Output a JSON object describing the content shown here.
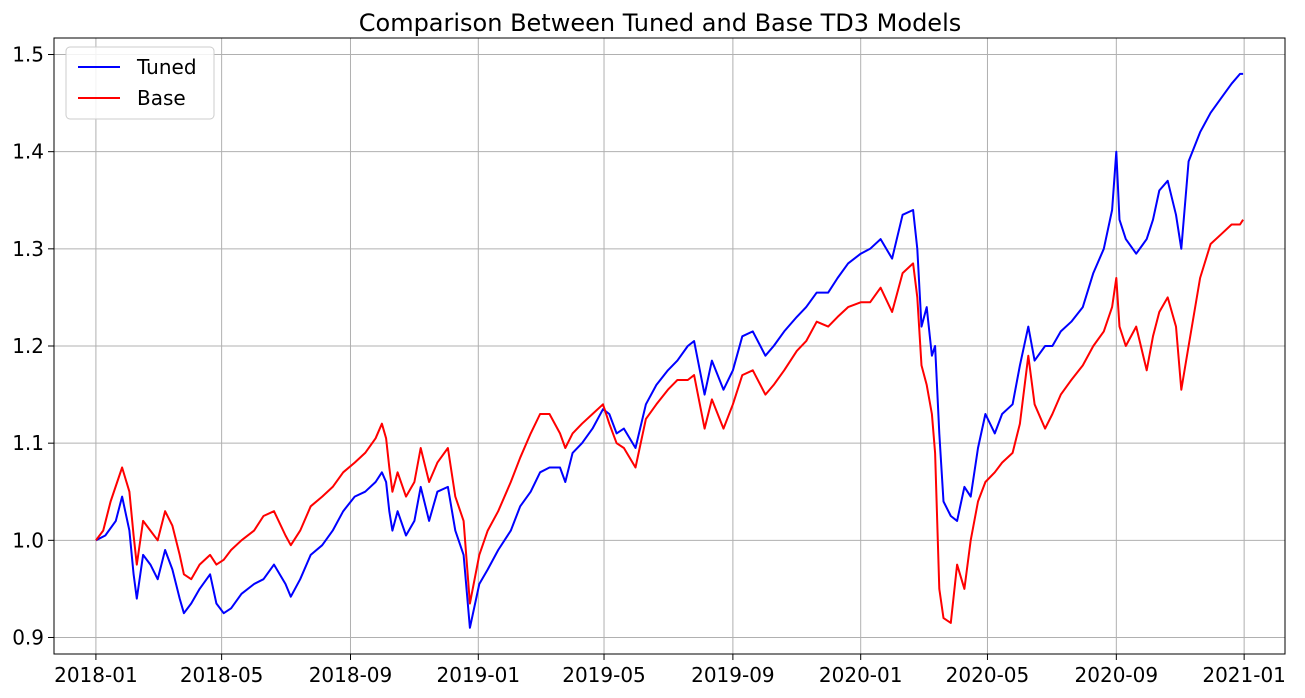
{
  "chart_data": {
    "type": "line",
    "title": "Comparison Between Tuned and Base TD3 Models",
    "xlabel": "",
    "ylabel": "",
    "x_range": [
      "2017-11-22",
      "2021-02-09"
    ],
    "ylim": [
      0.883,
      1.517
    ],
    "grid": true,
    "legend_position": "upper-left",
    "x_ticks": [
      "2018-01",
      "2018-05",
      "2018-09",
      "2019-01",
      "2019-05",
      "2019-09",
      "2020-01",
      "2020-05",
      "2020-09",
      "2021-01"
    ],
    "y_ticks": [
      0.9,
      1.0,
      1.1,
      1.2,
      1.3,
      1.4,
      1.5
    ],
    "y_tick_labels": [
      "0.9",
      "1.0",
      "1.1",
      "1.2",
      "1.3",
      "1.4",
      "1.5"
    ],
    "colors": {
      "tuned": "#0000ff",
      "base": "#ff0000",
      "grid": "#b0b0b0"
    },
    "series": [
      {
        "name": "Tuned",
        "color": "#0000ff",
        "points": [
          [
            "2018-01-01",
            1.0
          ],
          [
            "2018-01-10",
            1.005
          ],
          [
            "2018-01-20",
            1.02
          ],
          [
            "2018-01-26",
            1.045
          ],
          [
            "2018-02-02",
            1.01
          ],
          [
            "2018-02-06",
            0.965
          ],
          [
            "2018-02-09",
            0.94
          ],
          [
            "2018-02-15",
            0.985
          ],
          [
            "2018-02-22",
            0.975
          ],
          [
            "2018-03-01",
            0.96
          ],
          [
            "2018-03-08",
            0.99
          ],
          [
            "2018-03-15",
            0.97
          ],
          [
            "2018-03-22",
            0.94
          ],
          [
            "2018-03-26",
            0.925
          ],
          [
            "2018-04-02",
            0.935
          ],
          [
            "2018-04-10",
            0.95
          ],
          [
            "2018-04-20",
            0.965
          ],
          [
            "2018-04-26",
            0.935
          ],
          [
            "2018-05-03",
            0.925
          ],
          [
            "2018-05-10",
            0.93
          ],
          [
            "2018-05-20",
            0.945
          ],
          [
            "2018-06-01",
            0.955
          ],
          [
            "2018-06-10",
            0.96
          ],
          [
            "2018-06-20",
            0.975
          ],
          [
            "2018-07-01",
            0.955
          ],
          [
            "2018-07-06",
            0.942
          ],
          [
            "2018-07-15",
            0.96
          ],
          [
            "2018-07-25",
            0.985
          ],
          [
            "2018-08-05",
            0.995
          ],
          [
            "2018-08-15",
            1.01
          ],
          [
            "2018-08-25",
            1.03
          ],
          [
            "2018-09-05",
            1.045
          ],
          [
            "2018-09-15",
            1.05
          ],
          [
            "2018-09-25",
            1.06
          ],
          [
            "2018-10-01",
            1.07
          ],
          [
            "2018-10-05",
            1.06
          ],
          [
            "2018-10-08",
            1.03
          ],
          [
            "2018-10-11",
            1.01
          ],
          [
            "2018-10-16",
            1.03
          ],
          [
            "2018-10-24",
            1.005
          ],
          [
            "2018-11-01",
            1.02
          ],
          [
            "2018-11-07",
            1.055
          ],
          [
            "2018-11-15",
            1.02
          ],
          [
            "2018-11-23",
            1.05
          ],
          [
            "2018-12-03",
            1.055
          ],
          [
            "2018-12-10",
            1.01
          ],
          [
            "2018-12-18",
            0.985
          ],
          [
            "2018-12-24",
            0.91
          ],
          [
            "2019-01-02",
            0.955
          ],
          [
            "2019-01-10",
            0.97
          ],
          [
            "2019-01-20",
            0.99
          ],
          [
            "2019-02-01",
            1.01
          ],
          [
            "2019-02-10",
            1.035
          ],
          [
            "2019-02-20",
            1.05
          ],
          [
            "2019-03-01",
            1.07
          ],
          [
            "2019-03-10",
            1.075
          ],
          [
            "2019-03-20",
            1.075
          ],
          [
            "2019-03-25",
            1.06
          ],
          [
            "2019-04-01",
            1.09
          ],
          [
            "2019-04-10",
            1.1
          ],
          [
            "2019-04-20",
            1.115
          ],
          [
            "2019-04-30",
            1.135
          ],
          [
            "2019-05-06",
            1.13
          ],
          [
            "2019-05-13",
            1.11
          ],
          [
            "2019-05-20",
            1.115
          ],
          [
            "2019-05-31",
            1.095
          ],
          [
            "2019-06-10",
            1.14
          ],
          [
            "2019-06-20",
            1.16
          ],
          [
            "2019-07-01",
            1.175
          ],
          [
            "2019-07-10",
            1.185
          ],
          [
            "2019-07-20",
            1.2
          ],
          [
            "2019-07-26",
            1.205
          ],
          [
            "2019-08-05",
            1.15
          ],
          [
            "2019-08-12",
            1.185
          ],
          [
            "2019-08-23",
            1.155
          ],
          [
            "2019-09-01",
            1.175
          ],
          [
            "2019-09-10",
            1.21
          ],
          [
            "2019-09-20",
            1.215
          ],
          [
            "2019-10-02",
            1.19
          ],
          [
            "2019-10-10",
            1.2
          ],
          [
            "2019-10-20",
            1.215
          ],
          [
            "2019-11-01",
            1.23
          ],
          [
            "2019-11-10",
            1.24
          ],
          [
            "2019-11-20",
            1.255
          ],
          [
            "2019-12-01",
            1.255
          ],
          [
            "2019-12-10",
            1.27
          ],
          [
            "2019-12-20",
            1.285
          ],
          [
            "2020-01-01",
            1.295
          ],
          [
            "2020-01-10",
            1.3
          ],
          [
            "2020-01-20",
            1.31
          ],
          [
            "2020-01-31",
            1.29
          ],
          [
            "2020-02-10",
            1.335
          ],
          [
            "2020-02-20",
            1.34
          ],
          [
            "2020-02-24",
            1.3
          ],
          [
            "2020-02-28",
            1.22
          ],
          [
            "2020-03-04",
            1.24
          ],
          [
            "2020-03-09",
            1.19
          ],
          [
            "2020-03-12",
            1.2
          ],
          [
            "2020-03-16",
            1.11
          ],
          [
            "2020-03-20",
            1.04
          ],
          [
            "2020-03-27",
            1.025
          ],
          [
            "2020-04-02",
            1.02
          ],
          [
            "2020-04-09",
            1.055
          ],
          [
            "2020-04-15",
            1.045
          ],
          [
            "2020-04-22",
            1.095
          ],
          [
            "2020-04-29",
            1.13
          ],
          [
            "2020-05-08",
            1.11
          ],
          [
            "2020-05-15",
            1.13
          ],
          [
            "2020-05-25",
            1.14
          ],
          [
            "2020-06-01",
            1.18
          ],
          [
            "2020-06-09",
            1.22
          ],
          [
            "2020-06-15",
            1.185
          ],
          [
            "2020-06-25",
            1.2
          ],
          [
            "2020-07-02",
            1.2
          ],
          [
            "2020-07-10",
            1.215
          ],
          [
            "2020-07-20",
            1.225
          ],
          [
            "2020-07-31",
            1.24
          ],
          [
            "2020-08-10",
            1.275
          ],
          [
            "2020-08-20",
            1.3
          ],
          [
            "2020-08-28",
            1.34
          ],
          [
            "2020-09-01",
            1.4
          ],
          [
            "2020-09-04",
            1.33
          ],
          [
            "2020-09-10",
            1.31
          ],
          [
            "2020-09-20",
            1.295
          ],
          [
            "2020-09-30",
            1.31
          ],
          [
            "2020-10-06",
            1.33
          ],
          [
            "2020-10-12",
            1.36
          ],
          [
            "2020-10-20",
            1.37
          ],
          [
            "2020-10-28",
            1.335
          ],
          [
            "2020-11-02",
            1.3
          ],
          [
            "2020-11-09",
            1.39
          ],
          [
            "2020-11-20",
            1.42
          ],
          [
            "2020-11-30",
            1.44
          ],
          [
            "2020-12-10",
            1.455
          ],
          [
            "2020-12-20",
            1.47
          ],
          [
            "2020-12-28",
            1.48
          ],
          [
            "2020-12-31",
            1.48
          ]
        ]
      },
      {
        "name": "Base",
        "color": "#ff0000",
        "points": [
          [
            "2018-01-01",
            1.0
          ],
          [
            "2018-01-08",
            1.01
          ],
          [
            "2018-01-15",
            1.04
          ],
          [
            "2018-01-26",
            1.075
          ],
          [
            "2018-02-02",
            1.05
          ],
          [
            "2018-02-06",
            1.005
          ],
          [
            "2018-02-09",
            0.975
          ],
          [
            "2018-02-15",
            1.02
          ],
          [
            "2018-02-22",
            1.01
          ],
          [
            "2018-03-01",
            1.0
          ],
          [
            "2018-03-08",
            1.03
          ],
          [
            "2018-03-15",
            1.015
          ],
          [
            "2018-03-22",
            0.985
          ],
          [
            "2018-03-26",
            0.965
          ],
          [
            "2018-04-02",
            0.96
          ],
          [
            "2018-04-10",
            0.975
          ],
          [
            "2018-04-20",
            0.985
          ],
          [
            "2018-04-26",
            0.975
          ],
          [
            "2018-05-03",
            0.98
          ],
          [
            "2018-05-10",
            0.99
          ],
          [
            "2018-05-20",
            1.0
          ],
          [
            "2018-06-01",
            1.01
          ],
          [
            "2018-06-10",
            1.025
          ],
          [
            "2018-06-20",
            1.03
          ],
          [
            "2018-07-01",
            1.005
          ],
          [
            "2018-07-06",
            0.995
          ],
          [
            "2018-07-15",
            1.01
          ],
          [
            "2018-07-25",
            1.035
          ],
          [
            "2018-08-05",
            1.045
          ],
          [
            "2018-08-15",
            1.055
          ],
          [
            "2018-08-25",
            1.07
          ],
          [
            "2018-09-05",
            1.08
          ],
          [
            "2018-09-15",
            1.09
          ],
          [
            "2018-09-25",
            1.105
          ],
          [
            "2018-10-01",
            1.12
          ],
          [
            "2018-10-05",
            1.105
          ],
          [
            "2018-10-08",
            1.075
          ],
          [
            "2018-10-11",
            1.05
          ],
          [
            "2018-10-16",
            1.07
          ],
          [
            "2018-10-24",
            1.045
          ],
          [
            "2018-11-01",
            1.06
          ],
          [
            "2018-11-07",
            1.095
          ],
          [
            "2018-11-15",
            1.06
          ],
          [
            "2018-11-23",
            1.08
          ],
          [
            "2018-12-03",
            1.095
          ],
          [
            "2018-12-10",
            1.045
          ],
          [
            "2018-12-18",
            1.02
          ],
          [
            "2018-12-24",
            0.935
          ],
          [
            "2019-01-02",
            0.985
          ],
          [
            "2019-01-10",
            1.01
          ],
          [
            "2019-01-20",
            1.03
          ],
          [
            "2019-02-01",
            1.06
          ],
          [
            "2019-02-10",
            1.085
          ],
          [
            "2019-02-20",
            1.11
          ],
          [
            "2019-03-01",
            1.13
          ],
          [
            "2019-03-10",
            1.13
          ],
          [
            "2019-03-20",
            1.11
          ],
          [
            "2019-03-25",
            1.095
          ],
          [
            "2019-04-01",
            1.11
          ],
          [
            "2019-04-10",
            1.12
          ],
          [
            "2019-04-20",
            1.13
          ],
          [
            "2019-04-30",
            1.14
          ],
          [
            "2019-05-06",
            1.12
          ],
          [
            "2019-05-13",
            1.1
          ],
          [
            "2019-05-20",
            1.095
          ],
          [
            "2019-05-31",
            1.075
          ],
          [
            "2019-06-10",
            1.125
          ],
          [
            "2019-06-20",
            1.14
          ],
          [
            "2019-07-01",
            1.155
          ],
          [
            "2019-07-10",
            1.165
          ],
          [
            "2019-07-20",
            1.165
          ],
          [
            "2019-07-26",
            1.17
          ],
          [
            "2019-08-05",
            1.115
          ],
          [
            "2019-08-12",
            1.145
          ],
          [
            "2019-08-23",
            1.115
          ],
          [
            "2019-09-01",
            1.14
          ],
          [
            "2019-09-10",
            1.17
          ],
          [
            "2019-09-20",
            1.175
          ],
          [
            "2019-10-02",
            1.15
          ],
          [
            "2019-10-10",
            1.16
          ],
          [
            "2019-10-20",
            1.175
          ],
          [
            "2019-11-01",
            1.195
          ],
          [
            "2019-11-10",
            1.205
          ],
          [
            "2019-11-20",
            1.225
          ],
          [
            "2019-12-01",
            1.22
          ],
          [
            "2019-12-10",
            1.23
          ],
          [
            "2019-12-20",
            1.24
          ],
          [
            "2020-01-01",
            1.245
          ],
          [
            "2020-01-10",
            1.245
          ],
          [
            "2020-01-20",
            1.26
          ],
          [
            "2020-01-31",
            1.235
          ],
          [
            "2020-02-10",
            1.275
          ],
          [
            "2020-02-20",
            1.285
          ],
          [
            "2020-02-24",
            1.25
          ],
          [
            "2020-02-28",
            1.18
          ],
          [
            "2020-03-04",
            1.16
          ],
          [
            "2020-03-09",
            1.13
          ],
          [
            "2020-03-12",
            1.09
          ],
          [
            "2020-03-16",
            0.95
          ],
          [
            "2020-03-20",
            0.92
          ],
          [
            "2020-03-27",
            0.915
          ],
          [
            "2020-04-02",
            0.975
          ],
          [
            "2020-04-09",
            0.95
          ],
          [
            "2020-04-15",
            1.0
          ],
          [
            "2020-04-22",
            1.04
          ],
          [
            "2020-04-29",
            1.06
          ],
          [
            "2020-05-08",
            1.07
          ],
          [
            "2020-05-15",
            1.08
          ],
          [
            "2020-05-25",
            1.09
          ],
          [
            "2020-06-01",
            1.12
          ],
          [
            "2020-06-09",
            1.19
          ],
          [
            "2020-06-15",
            1.14
          ],
          [
            "2020-06-25",
            1.115
          ],
          [
            "2020-07-02",
            1.13
          ],
          [
            "2020-07-10",
            1.15
          ],
          [
            "2020-07-20",
            1.165
          ],
          [
            "2020-07-31",
            1.18
          ],
          [
            "2020-08-10",
            1.2
          ],
          [
            "2020-08-20",
            1.215
          ],
          [
            "2020-08-28",
            1.24
          ],
          [
            "2020-09-01",
            1.27
          ],
          [
            "2020-09-04",
            1.22
          ],
          [
            "2020-09-10",
            1.2
          ],
          [
            "2020-09-20",
            1.22
          ],
          [
            "2020-09-30",
            1.175
          ],
          [
            "2020-10-06",
            1.21
          ],
          [
            "2020-10-12",
            1.235
          ],
          [
            "2020-10-20",
            1.25
          ],
          [
            "2020-10-28",
            1.22
          ],
          [
            "2020-11-02",
            1.155
          ],
          [
            "2020-11-09",
            1.2
          ],
          [
            "2020-11-20",
            1.27
          ],
          [
            "2020-11-30",
            1.305
          ],
          [
            "2020-12-10",
            1.315
          ],
          [
            "2020-12-20",
            1.325
          ],
          [
            "2020-12-28",
            1.325
          ],
          [
            "2020-12-31",
            1.33
          ]
        ]
      }
    ]
  }
}
